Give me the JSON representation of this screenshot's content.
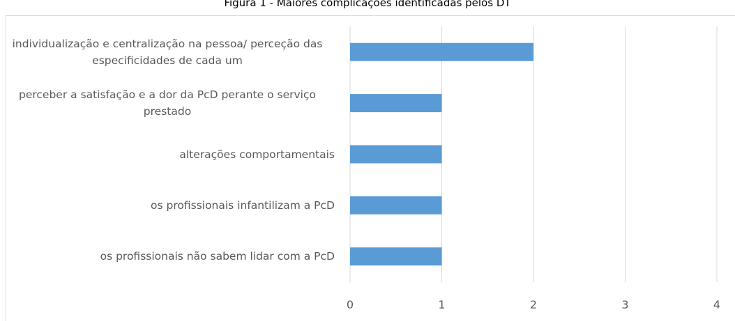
{
  "chart_data": {
    "type": "bar",
    "orientation": "horizontal",
    "title": "Figura 1 - Maiores complicações identificadas pelos DT",
    "categories": [
      "individualização e centralização na pessoa/ perceção das especificidades de cada um",
      "perceber a satisfação e a dor da PcD perante o serviço prestado",
      "alterações comportamentais",
      "os profissionais infantilizam a PcD",
      "os profissionais não sabem lidar com a PcD"
    ],
    "values": [
      2,
      1,
      1,
      1,
      1
    ],
    "color": "#5b9bd5",
    "xlim": [
      0,
      4
    ],
    "xticks": [
      0,
      1,
      2,
      3,
      4
    ],
    "grid": true
  }
}
